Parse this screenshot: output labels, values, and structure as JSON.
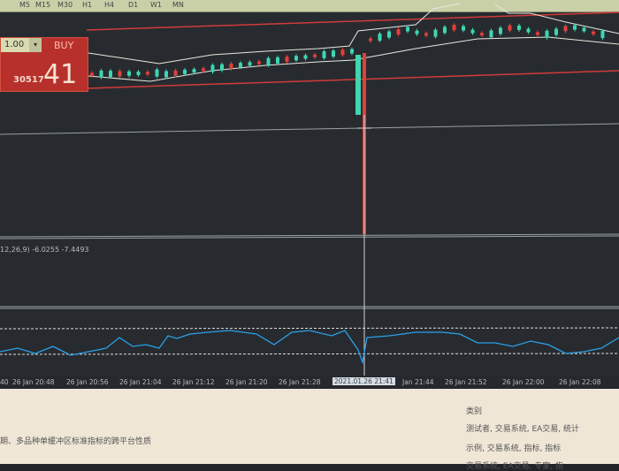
{
  "toolbar": {
    "timeframes": [
      "M5",
      "M15",
      "M30",
      "H1",
      "H4",
      "D1",
      "W1",
      "MN"
    ]
  },
  "trade_panel": {
    "lot": "1.00",
    "lot_button": "▾",
    "buy_label": "BUY",
    "price_prefix": "30517",
    "price_big": "41"
  },
  "indicator_label": "12,26,9) -6.0255 -7.4493",
  "time_axis": [
    "40",
    "26 Jan 20:48",
    "26 Jan 20:56",
    "26 Jan 21:04",
    "26 Jan 21:12",
    "26 Jan 21:20",
    "26 Jan 21:28",
    "2021.01.26 21:41",
    "Jan 21:44",
    "26 Jan 21:52",
    "26 Jan 22:00",
    "26 Jan 22:08"
  ],
  "bottom": {
    "left_text": "期、多品种单缓冲区标准指标的跨平台性质",
    "category_title": "类别",
    "cat1": "测试者, 交易系统, EA交易, 统计",
    "cat2": "示例, 交易系统, 指标, 指标",
    "cat3": "交易系统, EA交易, 专家, 指"
  },
  "colors": {
    "bull": "#3dd6b0",
    "bear": "#e0403a",
    "band": "#e8e8e0",
    "level": "#d23a3a",
    "oscillator": "#2aa0e8"
  }
}
